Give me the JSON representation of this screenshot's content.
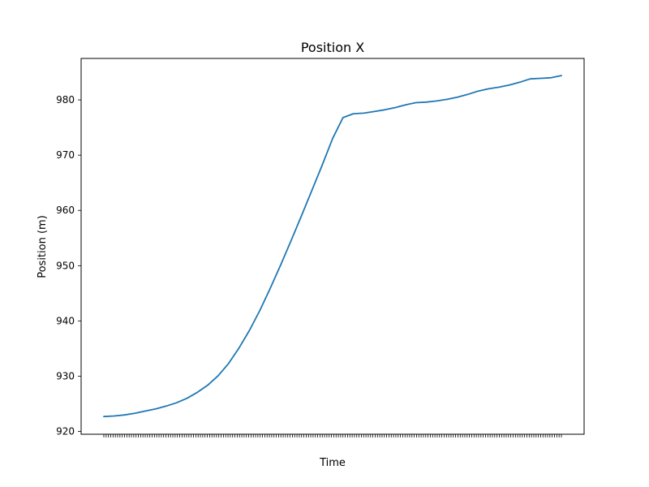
{
  "chart_data": {
    "type": "line",
    "title": "Position X",
    "xlabel": "Time",
    "ylabel": "Position (m)",
    "ylim": [
      919.5,
      987.5
    ],
    "yticks": [
      920,
      930,
      940,
      950,
      960,
      970,
      980
    ],
    "grid": false,
    "x_tick_count": 200,
    "series": [
      {
        "color": "#1f77b4",
        "y": [
          922.7,
          922.8,
          923.0,
          923.3,
          923.7,
          924.1,
          924.6,
          925.2,
          926.0,
          927.1,
          928.4,
          930.1,
          932.3,
          935.1,
          938.3,
          941.9,
          945.9,
          950.1,
          954.5,
          959.0,
          963.6,
          968.2,
          973.0,
          976.8,
          977.5,
          977.6,
          977.9,
          978.2,
          978.6,
          979.1,
          979.5,
          979.6,
          979.8,
          980.1,
          980.5,
          981.0,
          981.6,
          982.0,
          982.3,
          982.7,
          983.2,
          983.8,
          983.9,
          984.0,
          984.4
        ]
      }
    ]
  }
}
